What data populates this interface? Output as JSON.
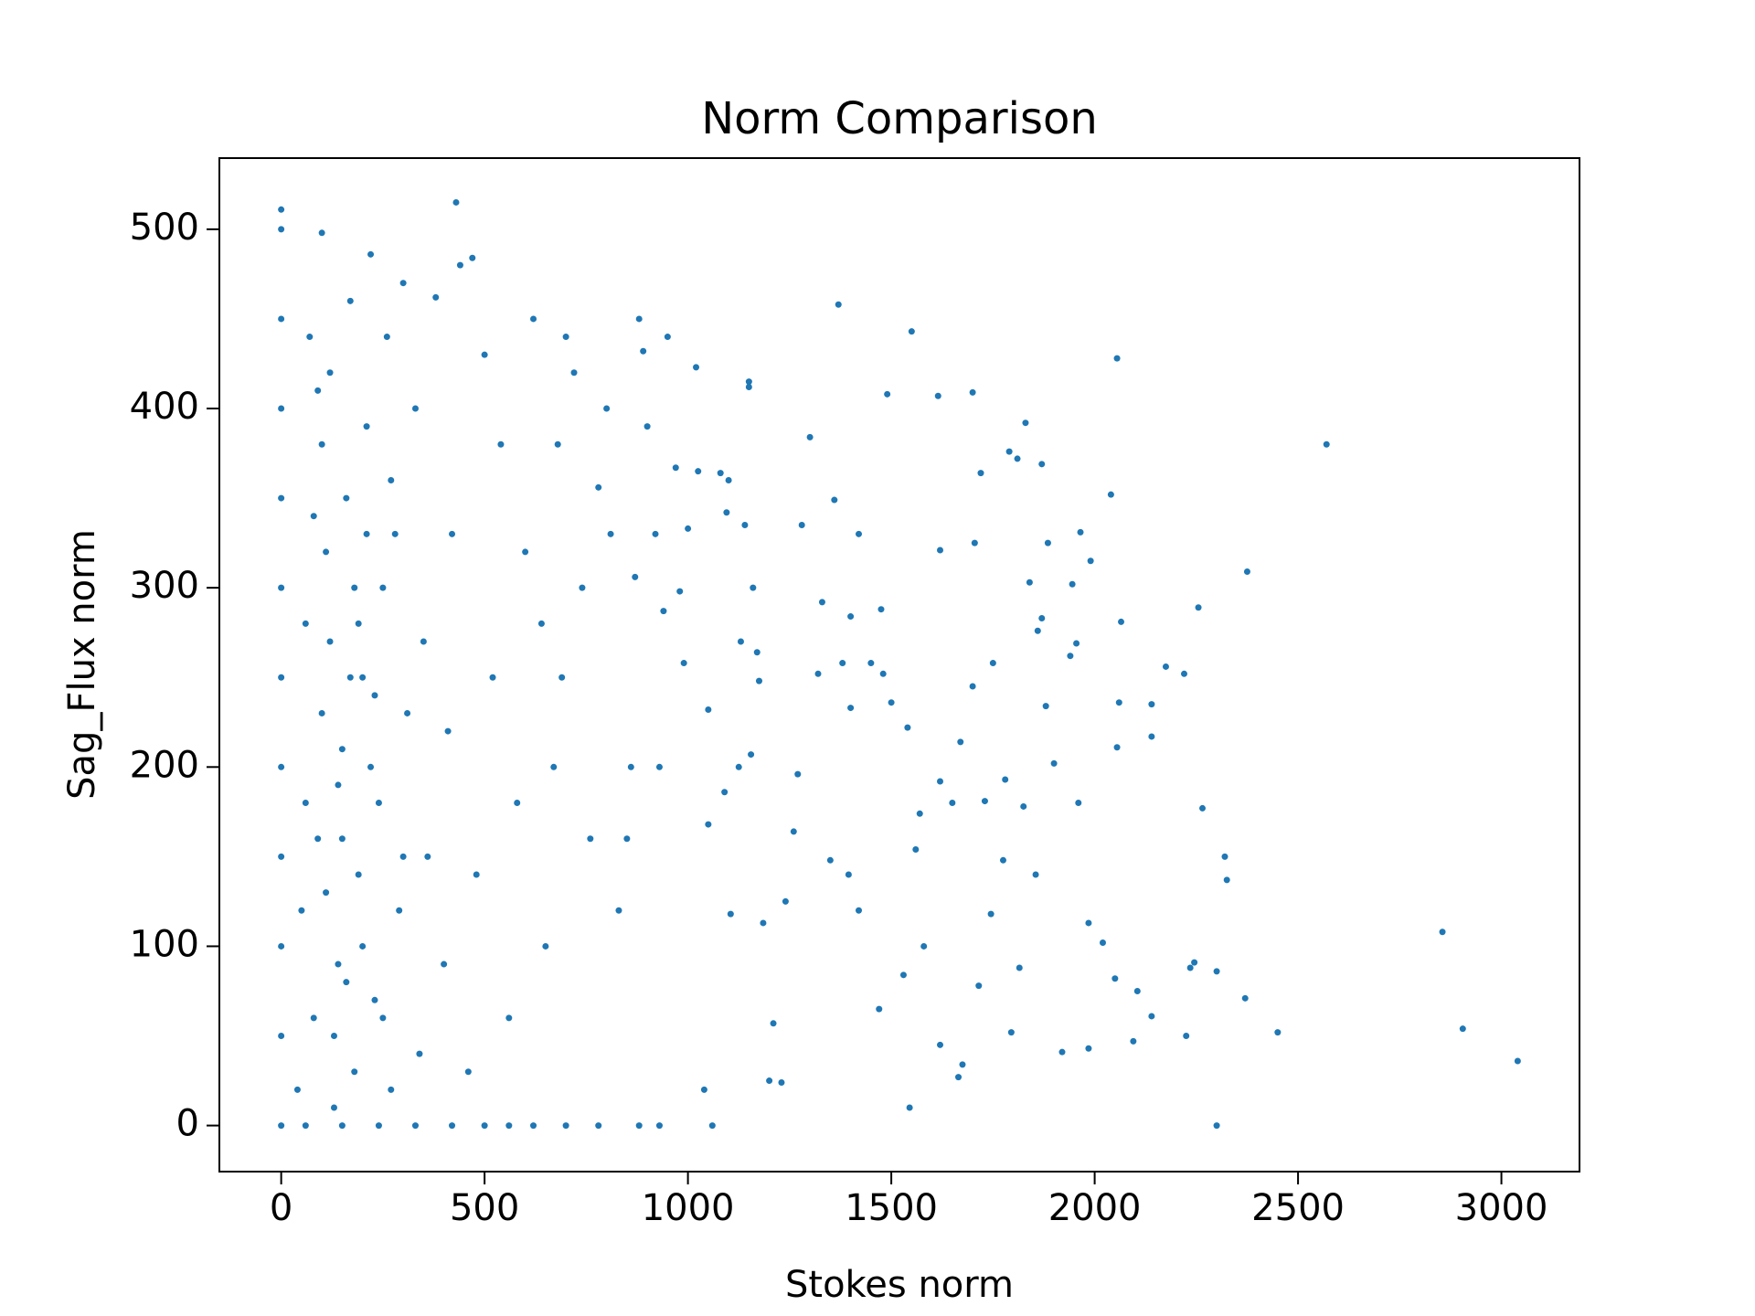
{
  "chart_data": {
    "type": "scatter",
    "title": "Norm Comparison",
    "x_label": "Stokes norm",
    "y_label": "Sag_Flux norm",
    "color": "#1f77b4",
    "xlim": [
      -152,
      3192
    ],
    "ylim": [
      -25.7,
      539.7
    ],
    "xticks": [
      0,
      500,
      1000,
      1500,
      2000,
      2500,
      3000
    ],
    "yticks": [
      0,
      100,
      200,
      300,
      400,
      500
    ],
    "x": [
      3040,
      2905,
      2855,
      2570,
      2450,
      2375,
      2370,
      2325,
      2320,
      2300,
      2300,
      2265,
      2255,
      2245,
      2235,
      2220,
      2225,
      2175,
      2140,
      2140,
      2140,
      2105,
      2095,
      2060,
      2055,
      2065,
      2055,
      2050,
      2040,
      2020,
      1990,
      1985,
      1985,
      1965,
      1960,
      1955,
      1940,
      1945,
      1920,
      1900,
      1885,
      1880,
      1870,
      1870,
      1860,
      1855,
      1840,
      1830,
      1825,
      1815,
      1810,
      1795,
      1790,
      1780,
      1775,
      1750,
      1745,
      1730,
      1720,
      1715,
      1700,
      1705,
      1700,
      1675,
      1670,
      1665,
      1650,
      1620,
      1615,
      1620,
      1620,
      1580,
      1570,
      1560,
      1550,
      1545,
      1540,
      1530,
      1500,
      1490,
      1480,
      1475,
      1470,
      1450,
      1420,
      1420,
      1400,
      1400,
      1395,
      1380,
      1370,
      1360,
      1350,
      1330,
      1320,
      1300,
      1280,
      1270,
      1260,
      1240,
      1230,
      1210,
      1200,
      1185,
      1175,
      1170,
      1160,
      1155,
      1150,
      1150,
      1140,
      1130,
      1125,
      1100,
      1105,
      1095,
      1090,
      1080,
      1050,
      1050,
      1020,
      1040,
      1060,
      1025,
      1000,
      990,
      980,
      970,
      950,
      940,
      930,
      920,
      900,
      890,
      880,
      870,
      860,
      850,
      830,
      810,
      800,
      780,
      760,
      740,
      720,
      700,
      690,
      680,
      670,
      650,
      640,
      620,
      600,
      580,
      560,
      540,
      520,
      500,
      480,
      460,
      440,
      420,
      410,
      400,
      380,
      360,
      350,
      340,
      330,
      310,
      300,
      290,
      280,
      270,
      260,
      250,
      240,
      230,
      220,
      210,
      200,
      190,
      180,
      170,
      160,
      150,
      140,
      130,
      120,
      110,
      100,
      90,
      80,
      70,
      60,
      50,
      40,
      430,
      470,
      100,
      0,
      0,
      0,
      0,
      0,
      0,
      0,
      0,
      0,
      0,
      0,
      0,
      330,
      420,
      500,
      560,
      620,
      700,
      780,
      880,
      930,
      240,
      150,
      60,
      100,
      120,
      150,
      180,
      200,
      220,
      250,
      80,
      130,
      170,
      90,
      140,
      160,
      190,
      210,
      60,
      110,
      230,
      270,
      300
    ],
    "y": [
      36,
      54,
      108,
      380,
      52,
      309,
      71,
      137,
      150,
      0,
      86,
      177,
      289,
      91,
      88,
      252,
      50,
      256,
      217,
      235,
      61,
      75,
      47,
      236,
      428,
      281,
      211,
      82,
      352,
      102,
      315,
      113,
      43,
      331,
      180,
      269,
      262,
      302,
      41,
      202,
      325,
      234,
      369,
      283,
      276,
      140,
      303,
      392,
      178,
      88,
      372,
      52,
      376,
      193,
      148,
      258,
      118,
      181,
      364,
      78,
      409,
      325,
      245,
      34,
      214,
      27,
      180,
      321,
      407,
      192,
      45,
      100,
      174,
      154,
      443,
      10,
      222,
      84,
      236,
      408,
      252,
      288,
      65,
      258,
      330,
      120,
      284,
      233,
      140,
      258,
      458,
      349,
      148,
      292,
      252,
      384,
      335,
      196,
      164,
      125,
      24,
      57,
      25,
      113,
      248,
      264,
      300,
      207,
      415,
      412,
      335,
      270,
      200,
      360,
      118,
      342,
      186,
      364,
      232,
      168,
      423,
      20,
      0,
      365,
      333,
      258,
      298,
      367,
      440,
      287,
      200,
      330,
      390,
      432,
      450,
      306,
      200,
      160,
      120,
      330,
      400,
      356,
      160,
      300,
      420,
      440,
      250,
      380,
      200,
      100,
      280,
      450,
      320,
      180,
      60,
      380,
      250,
      430,
      140,
      30,
      480,
      330,
      220,
      90,
      462,
      150,
      270,
      40,
      400,
      230,
      470,
      120,
      330,
      20,
      440,
      300,
      180,
      70,
      486,
      390,
      250,
      140,
      30,
      460,
      350,
      210,
      90,
      10,
      420,
      320,
      230,
      160,
      60,
      440,
      280,
      120,
      20,
      515,
      484,
      498,
      0,
      50,
      100,
      150,
      200,
      250,
      300,
      350,
      400,
      450,
      500,
      511,
      0,
      0,
      0,
      0,
      0,
      0,
      0,
      0,
      0,
      0,
      0,
      0,
      380,
      270,
      160,
      300,
      100,
      200,
      60,
      340,
      50,
      250,
      410,
      190,
      80,
      280,
      330,
      180,
      130,
      240,
      360,
      150
    ]
  }
}
